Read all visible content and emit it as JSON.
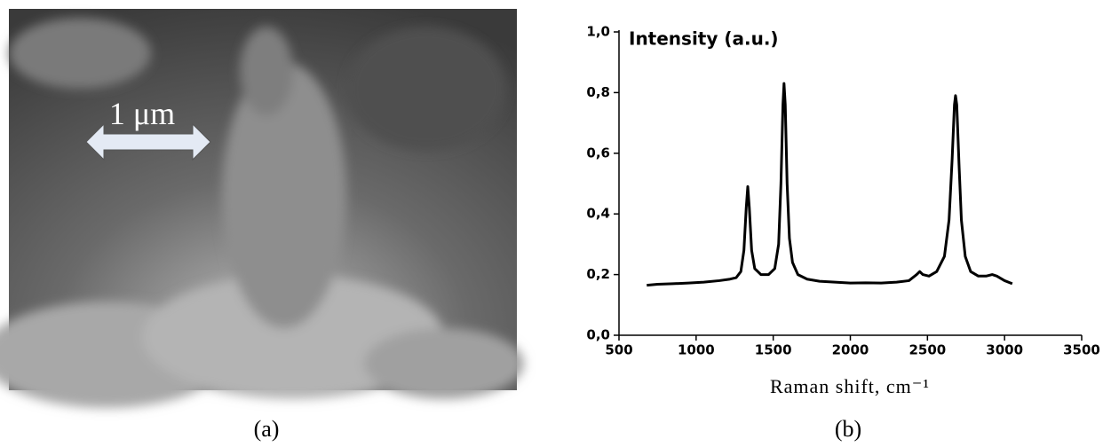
{
  "image": {
    "scale_bar_label": "1 μm",
    "caption": "(a)"
  },
  "chart_data": {
    "type": "line",
    "title": "Intensity (a.u.)",
    "xlabel": "Raman shift, cm⁻¹",
    "caption": "(b)",
    "color": "#000000",
    "x": [
      680,
      750,
      850,
      950,
      1050,
      1150,
      1220,
      1260,
      1290,
      1310,
      1325,
      1335,
      1345,
      1360,
      1380,
      1420,
      1470,
      1510,
      1535,
      1550,
      1563,
      1570,
      1578,
      1590,
      1605,
      1625,
      1660,
      1720,
      1800,
      1900,
      2000,
      2100,
      2200,
      2300,
      2380,
      2430,
      2450,
      2470,
      2510,
      2560,
      2610,
      2640,
      2660,
      2675,
      2682,
      2690,
      2705,
      2720,
      2745,
      2780,
      2830,
      2880,
      2920,
      2950,
      3000,
      3050
    ],
    "values": [
      0.165,
      0.168,
      0.17,
      0.172,
      0.175,
      0.18,
      0.185,
      0.19,
      0.21,
      0.28,
      0.42,
      0.49,
      0.42,
      0.28,
      0.22,
      0.2,
      0.2,
      0.22,
      0.3,
      0.5,
      0.76,
      0.83,
      0.76,
      0.5,
      0.32,
      0.24,
      0.2,
      0.185,
      0.178,
      0.175,
      0.172,
      0.173,
      0.172,
      0.175,
      0.18,
      0.2,
      0.21,
      0.2,
      0.195,
      0.21,
      0.26,
      0.38,
      0.58,
      0.76,
      0.79,
      0.76,
      0.56,
      0.38,
      0.26,
      0.21,
      0.195,
      0.195,
      0.2,
      0.195,
      0.18,
      0.17
    ],
    "xlim": [
      500,
      3500
    ],
    "xticks": [
      500,
      1000,
      1500,
      2000,
      2500,
      3000,
      3500
    ],
    "ylim": [
      0,
      1
    ],
    "yticks": [
      {
        "value": 0,
        "label": "0,0"
      },
      {
        "value": 0.2,
        "label": "0,2"
      },
      {
        "value": 0.4,
        "label": "0,4"
      },
      {
        "value": 0.6,
        "label": "0,6"
      },
      {
        "value": 0.8,
        "label": "0,8"
      },
      {
        "value": 1,
        "label": "1,0"
      }
    ]
  }
}
